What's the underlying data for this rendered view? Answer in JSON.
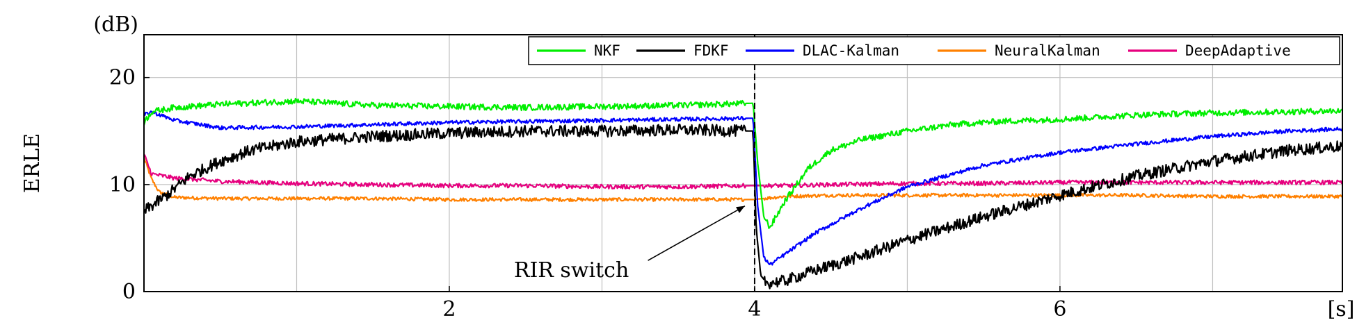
{
  "chart_data": {
    "type": "line",
    "title": "",
    "xlabel": "",
    "ylabel": "ERLE",
    "x_unit": "[s]",
    "y_unit": "(dB)",
    "xlim": [
      0,
      7.85
    ],
    "ylim": [
      0,
      24
    ],
    "xticks": [
      2,
      4,
      6
    ],
    "yticks": [
      0,
      10,
      20
    ],
    "grid": true,
    "legend_position": "top-right",
    "annotation": {
      "text": "RIR switch",
      "x": 4.0,
      "y": 8.0
    },
    "switch_x": 4.0,
    "series": [
      {
        "name": "NKF",
        "color": "#00ee00",
        "x": [
          0,
          0.05,
          0.2,
          0.5,
          1.0,
          1.5,
          2.0,
          2.5,
          3.0,
          3.5,
          3.99,
          4.02,
          4.06,
          4.1,
          4.2,
          4.35,
          4.5,
          4.7,
          5.0,
          5.3,
          5.6,
          6.0,
          6.5,
          7.0,
          7.5,
          7.85
        ],
        "y": [
          15.8,
          16.8,
          17.2,
          17.5,
          17.8,
          17.4,
          17.3,
          17.2,
          17.3,
          17.4,
          17.6,
          12.0,
          7.0,
          6.0,
          8.5,
          11.5,
          13.2,
          14.2,
          15.0,
          15.6,
          15.9,
          16.1,
          16.5,
          16.7,
          16.8,
          16.9
        ]
      },
      {
        "name": "FDKF",
        "color": "#000000",
        "x": [
          0,
          0.05,
          0.15,
          0.3,
          0.5,
          0.7,
          1.0,
          1.5,
          2.0,
          2.5,
          3.0,
          3.5,
          3.99,
          4.01,
          4.04,
          4.08,
          4.2,
          4.4,
          4.7,
          5.0,
          5.5,
          6.0,
          6.5,
          7.0,
          7.5,
          7.85
        ],
        "y": [
          7.5,
          8.0,
          9.0,
          10.8,
          12.2,
          13.2,
          14.0,
          14.5,
          14.8,
          15.0,
          15.0,
          15.1,
          15.0,
          6.0,
          1.5,
          0.8,
          1.0,
          2.0,
          3.3,
          4.8,
          7.0,
          9.0,
          10.8,
          12.2,
          13.2,
          13.6
        ]
      },
      {
        "name": "DLAC-Kalman",
        "color": "#0000ff",
        "x": [
          0,
          0.05,
          0.2,
          0.5,
          1.0,
          1.5,
          2.0,
          2.5,
          3.0,
          3.5,
          3.99,
          4.02,
          4.06,
          4.1,
          4.2,
          4.4,
          4.7,
          5.0,
          5.5,
          6.0,
          6.5,
          7.0,
          7.5,
          7.85
        ],
        "y": [
          16.5,
          16.8,
          16.0,
          15.3,
          15.4,
          15.6,
          15.8,
          15.9,
          16.0,
          16.1,
          16.2,
          8.0,
          3.2,
          2.5,
          3.5,
          5.5,
          7.8,
          9.8,
          11.8,
          13.0,
          13.8,
          14.5,
          15.0,
          15.2
        ]
      },
      {
        "name": "NeuralKalman",
        "color": "#ff8000",
        "x": [
          0,
          0.05,
          0.1,
          0.2,
          0.5,
          1.0,
          1.5,
          2.0,
          2.5,
          3.0,
          3.5,
          3.99,
          4.2,
          4.5,
          5.0,
          5.5,
          6.0,
          6.5,
          7.0,
          7.5,
          7.85
        ],
        "y": [
          12.5,
          10.5,
          9.3,
          8.8,
          8.7,
          8.7,
          8.7,
          8.6,
          8.6,
          8.6,
          8.6,
          8.6,
          8.9,
          9.0,
          9.0,
          9.0,
          9.0,
          9.0,
          8.9,
          8.9,
          8.9
        ]
      },
      {
        "name": "DeepAdaptive",
        "color": "#e6007e",
        "x": [
          0,
          0.05,
          0.2,
          0.5,
          1.0,
          1.5,
          2.0,
          2.5,
          3.0,
          3.5,
          3.99,
          4.2,
          4.5,
          5.0,
          5.5,
          6.0,
          6.5,
          7.0,
          7.5,
          7.85
        ],
        "y": [
          12.8,
          11.0,
          10.6,
          10.3,
          10.1,
          10.0,
          9.9,
          9.9,
          9.8,
          9.8,
          9.9,
          9.9,
          10.0,
          10.1,
          10.1,
          10.2,
          10.2,
          10.2,
          10.2,
          10.2
        ]
      }
    ]
  }
}
